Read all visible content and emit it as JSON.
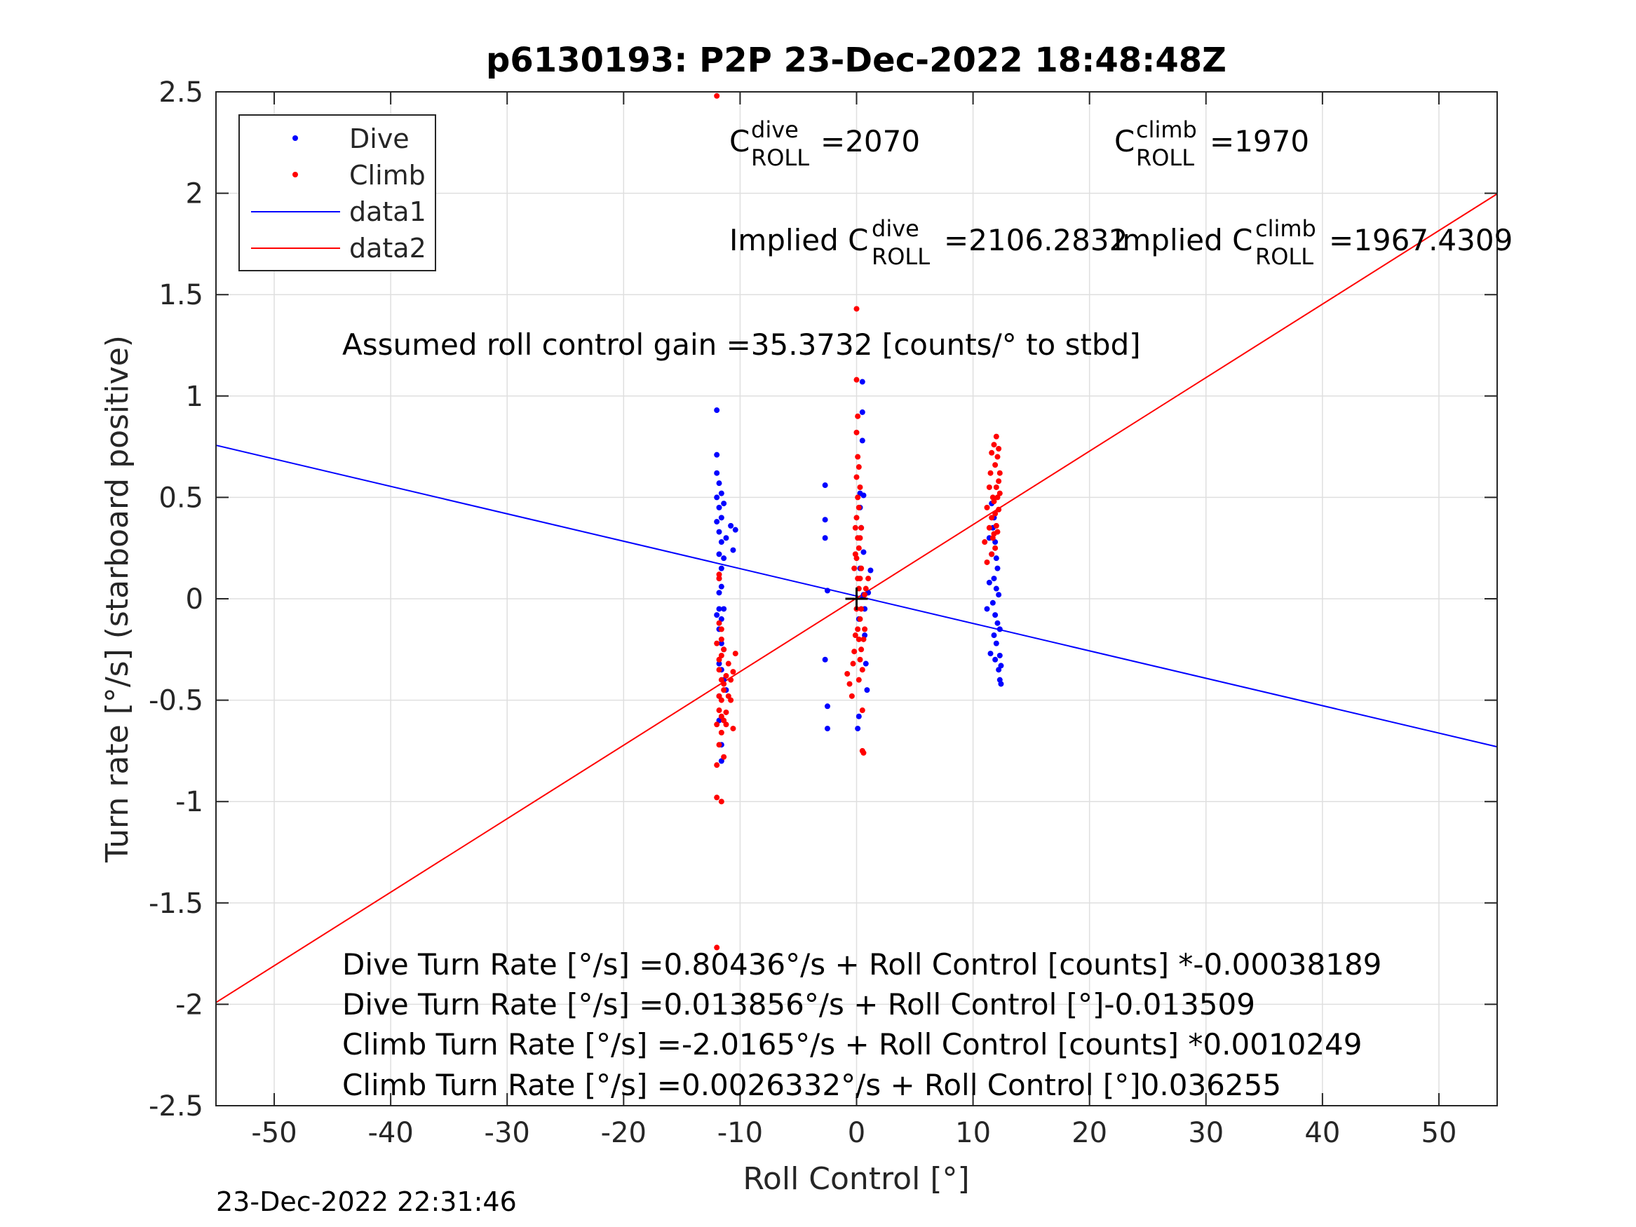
{
  "chart_data": {
    "type": "scatter",
    "title": "p6130193: P2P 23-Dec-2022 18:48:48Z",
    "xlabel": "Roll Control [°]",
    "ylabel": "Turn rate [°/s] (starboard positive)",
    "xlim": [
      -55,
      55
    ],
    "ylim": [
      -2.5,
      2.5
    ],
    "grid": true,
    "legend_position": "top-left",
    "xticks": [
      -50,
      -40,
      -30,
      -20,
      -10,
      0,
      10,
      20,
      30,
      40,
      50
    ],
    "xtick_labels": [
      "-50",
      "-40",
      "-30",
      "-20",
      "-10",
      "0",
      "10",
      "20",
      "30",
      "40",
      "50"
    ],
    "yticks": [
      -2.5,
      -2,
      -1.5,
      -1,
      -0.5,
      0,
      0.5,
      1,
      1.5,
      2,
      2.5
    ],
    "ytick_labels": [
      "-2.5",
      "-2",
      "-1.5",
      "-1",
      "-0.5",
      "0",
      "0.5",
      "1",
      "1.5",
      "2",
      "2.5"
    ],
    "series": [
      {
        "name": "Dive",
        "kind": "points",
        "color": "#0000ff",
        "x": [
          -12.0,
          -12.0,
          -12.0,
          -12.0,
          -12.0,
          -12.0,
          -11.8,
          -11.8,
          -11.8,
          -11.8,
          -11.8,
          -11.8,
          -11.8,
          -11.8,
          -11.8,
          -11.8,
          -11.8,
          -11.6,
          -11.6,
          -11.6,
          -11.6,
          -11.6,
          -11.6,
          -11.6,
          -11.6,
          -11.6,
          -11.6,
          -11.4,
          -11.4,
          -11.4,
          -11.4,
          -11.4,
          -11.2,
          -11.2,
          -10.8,
          -10.6,
          -10.4,
          -2.7,
          -2.7,
          -2.7,
          -2.7,
          -2.5,
          -2.5,
          -2.5,
          0.1,
          0.2,
          0.2,
          0.3,
          0.3,
          0.3,
          0.4,
          0.5,
          0.5,
          0.5,
          0.6,
          0.6,
          0.6,
          0.7,
          0.7,
          0.8,
          0.9,
          1.0,
          1.2,
          11.2,
          11.4,
          11.4,
          11.5,
          11.6,
          11.6,
          11.7,
          11.7,
          11.8,
          11.8,
          11.8,
          11.9,
          11.9,
          11.9,
          12.0,
          12.0,
          12.0,
          12.1,
          12.1,
          12.2,
          12.2,
          12.3,
          12.3,
          12.3,
          12.4,
          12.4
        ],
        "y": [
          0.93,
          0.71,
          0.62,
          0.5,
          0.38,
          -0.08,
          0.57,
          0.45,
          0.33,
          0.22,
          0.1,
          0.03,
          -0.05,
          -0.15,
          -0.32,
          -0.48,
          -0.6,
          0.52,
          0.4,
          0.28,
          0.15,
          0.06,
          -0.1,
          -0.22,
          -0.35,
          -0.72,
          -0.8,
          0.47,
          0.2,
          -0.05,
          -0.25,
          -0.4,
          0.3,
          -0.45,
          0.36,
          0.24,
          0.34,
          0.56,
          0.39,
          0.3,
          -0.3,
          0.04,
          -0.53,
          -0.64,
          -0.64,
          -0.58,
          -0.1,
          0.52,
          0.45,
          0.15,
          0.35,
          1.07,
          0.92,
          0.78,
          0.51,
          0.23,
          0.02,
          -0.05,
          -0.18,
          -0.32,
          -0.45,
          0.03,
          0.14,
          -0.05,
          0.3,
          0.08,
          -0.27,
          0.47,
          0.22,
          0.35,
          -0.02,
          0.4,
          0.1,
          -0.18,
          0.28,
          -0.08,
          -0.3,
          0.2,
          0.05,
          -0.22,
          0.15,
          -0.12,
          -0.35,
          0.02,
          -0.28,
          -0.4,
          -0.15,
          -0.42,
          -0.33
        ]
      },
      {
        "name": "Climb",
        "kind": "points",
        "color": "#ff0000",
        "x": [
          -12.0,
          -12.0,
          -12.0,
          -12.0,
          -12.0,
          -12.0,
          -11.8,
          -11.8,
          -11.8,
          -11.8,
          -11.8,
          -11.8,
          -11.8,
          -11.8,
          -11.6,
          -11.6,
          -11.6,
          -11.6,
          -11.6,
          -11.6,
          -11.6,
          -11.6,
          -11.4,
          -11.4,
          -11.4,
          -11.4,
          -11.4,
          -11.2,
          -11.2,
          -11.2,
          -11.0,
          -11.0,
          -10.8,
          -10.8,
          -10.6,
          -10.6,
          -10.4,
          -0.8,
          -0.6,
          -0.4,
          -0.3,
          -0.2,
          -0.2,
          -0.1,
          -0.1,
          -0.1,
          0.0,
          0.0,
          0.0,
          0.0,
          0.0,
          0.0,
          0.0,
          0.1,
          0.1,
          0.1,
          0.1,
          0.1,
          0.1,
          0.2,
          0.2,
          0.2,
          0.2,
          0.2,
          0.2,
          0.3,
          0.3,
          0.3,
          0.3,
          0.3,
          0.4,
          0.4,
          0.4,
          0.4,
          0.5,
          0.5,
          0.5,
          0.6,
          0.6,
          0.7,
          0.7,
          0.8,
          1.0,
          11.0,
          11.2,
          11.2,
          11.4,
          11.4,
          11.5,
          11.6,
          11.6,
          11.6,
          11.7,
          11.7,
          11.8,
          11.8,
          11.8,
          11.9,
          11.9,
          11.9,
          12.0,
          12.0,
          12.0,
          12.1,
          12.1,
          12.1,
          12.2,
          12.2,
          12.2,
          12.3,
          12.3
        ],
        "y": [
          2.48,
          -1.72,
          -0.98,
          -0.82,
          -0.62,
          -0.22,
          -0.55,
          -0.35,
          -0.3,
          -0.72,
          -0.48,
          -0.12,
          0.1,
          0.12,
          -0.2,
          -0.4,
          -0.58,
          -0.66,
          -0.28,
          -1.0,
          -0.5,
          -0.15,
          -0.42,
          -0.6,
          -0.25,
          -0.78,
          -0.45,
          -0.38,
          -0.56,
          -0.62,
          -0.32,
          -0.48,
          -0.4,
          -0.5,
          -0.36,
          -0.64,
          -0.27,
          -0.37,
          -0.42,
          -0.48,
          -0.32,
          -0.26,
          0.15,
          0.22,
          -0.18,
          0.35,
          1.43,
          1.08,
          0.82,
          0.6,
          0.4,
          0.2,
          -0.05,
          0.9,
          0.7,
          0.5,
          0.3,
          0.1,
          -0.15,
          0.65,
          0.45,
          0.25,
          0.05,
          -0.2,
          -0.4,
          0.55,
          0.3,
          0.1,
          -0.1,
          -0.3,
          0.35,
          0.15,
          -0.05,
          -0.25,
          -0.75,
          -0.55,
          -0.35,
          -0.76,
          -0.2,
          0.02,
          -0.15,
          0.05,
          0.1,
          0.28,
          0.45,
          0.18,
          0.55,
          0.35,
          0.62,
          0.72,
          0.4,
          0.22,
          0.5,
          0.3,
          0.76,
          0.48,
          0.32,
          0.66,
          0.42,
          0.25,
          0.8,
          0.55,
          0.36,
          0.7,
          0.5,
          0.33,
          0.74,
          0.58,
          0.44,
          0.62,
          0.52
        ]
      },
      {
        "name": "data1",
        "kind": "line",
        "color": "#0000ff",
        "x": [
          -55,
          55
        ],
        "y": [
          0.757,
          -0.73
        ]
      },
      {
        "name": "data2",
        "kind": "line",
        "color": "#ff0000",
        "x": [
          -55,
          55
        ],
        "y": [
          -1.991,
          1.997
        ]
      }
    ],
    "marker_plus": {
      "x": 0,
      "y": 0,
      "color": "#000000"
    },
    "annotations": {
      "c_dive": {
        "base": "C",
        "sup": "dive",
        "sub": "ROLL",
        "value": "=2070"
      },
      "c_climb": {
        "base": "C",
        "sup": "climb",
        "sub": "ROLL",
        "value": "=1970"
      },
      "implied_dive": {
        "prefix": "Implied C",
        "sup": "dive",
        "sub": "ROLL",
        "value": "=2106.2832"
      },
      "implied_climb": {
        "prefix": "Implied C",
        "sup": "climb",
        "sub": "ROLL",
        "value": "=1967.4309"
      },
      "gain": "Assumed roll control gain =35.3732 [counts/° to stbd]",
      "fit_lines": [
        "Dive Turn Rate [°/s] =0.80436°/s + Roll Control [counts] *-0.00038189",
        "Dive Turn Rate [°/s] =0.013856°/s + Roll Control [°]-0.013509",
        "Climb Turn Rate [°/s] =-2.0165°/s + Roll Control [counts] *0.0010249",
        "Climb Turn Rate [°/s] =0.0026332°/s + Roll Control [°]0.036255"
      ]
    }
  },
  "timestamp": "23-Dec-2022 22:31:46"
}
